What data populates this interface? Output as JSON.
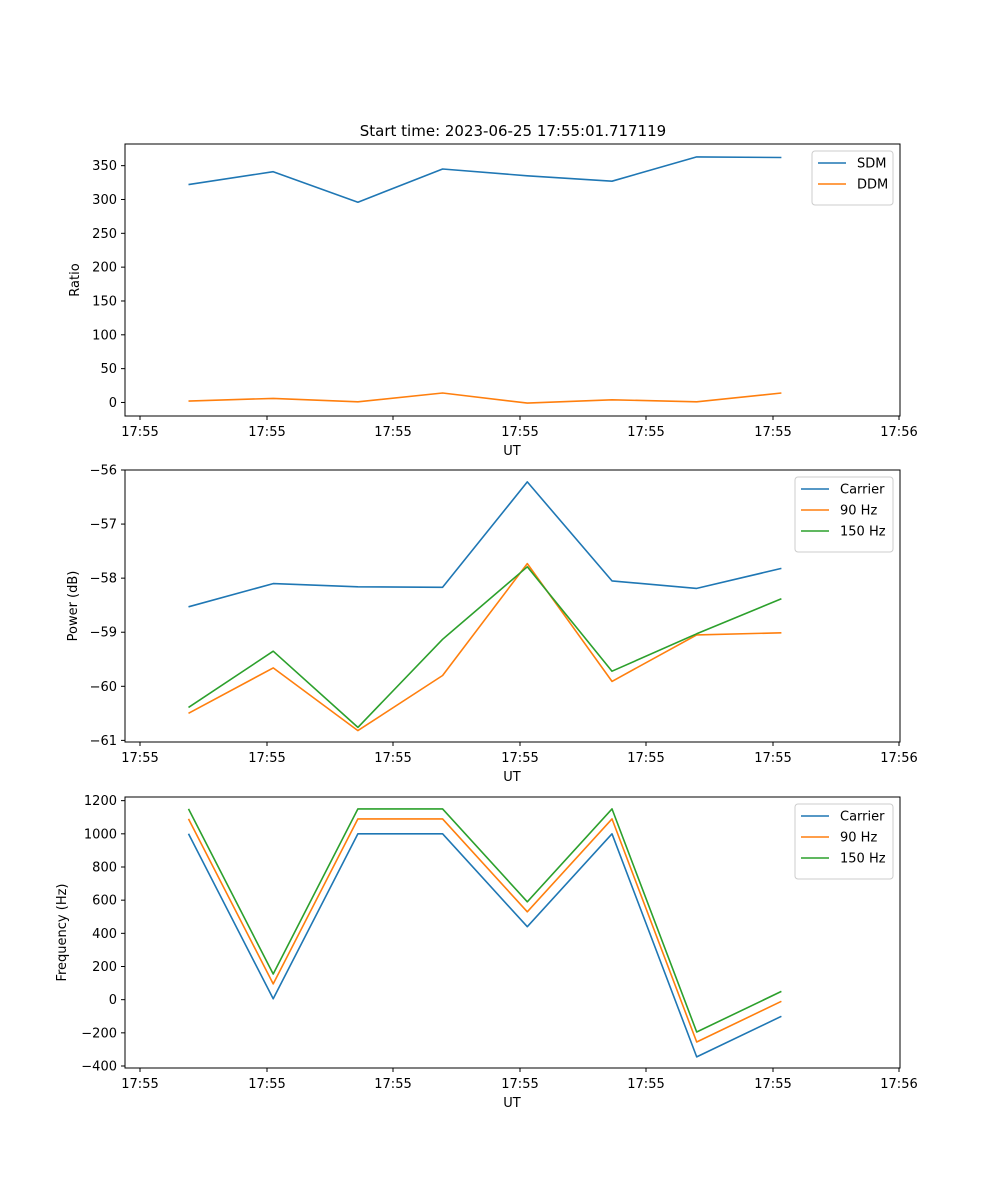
{
  "title": "Start time: 2023-06-25 17:55:01.717119",
  "colors": {
    "blue": "#1f77b4",
    "orange": "#ff7f0e",
    "green": "#2ca02c"
  },
  "chart_data": [
    {
      "type": "line",
      "xlabel": "UT",
      "ylabel": "Ratio",
      "ylim": [
        -20,
        382
      ],
      "yticks": [
        0,
        50,
        100,
        150,
        200,
        250,
        300,
        350
      ],
      "ytick_labels": [
        "0",
        "50",
        "100",
        "150",
        "200",
        "250",
        "300",
        "350"
      ],
      "xlim": [
        -0.45,
        8.7
      ],
      "xtick_labels": [
        "17:55",
        "17:55",
        "17:55",
        "17:55",
        "17:55",
        "17:55",
        "17:56"
      ],
      "x": [
        0.3,
        1.3,
        2.3,
        3.3,
        4.3,
        5.3,
        6.3,
        7.3
      ],
      "legend_position": "top-right",
      "series": [
        {
          "name": "SDM",
          "values": [
            322,
            341,
            296,
            345,
            335,
            327,
            363,
            362
          ]
        },
        {
          "name": "DDM",
          "values": [
            2,
            6,
            1,
            14,
            -1,
            4,
            1,
            14
          ]
        }
      ]
    },
    {
      "type": "line",
      "xlabel": "UT",
      "ylabel": "Power (dB)",
      "ylim": [
        -61.03,
        -56
      ],
      "yticks": [
        -61,
        -60,
        -59,
        -58,
        -57,
        -56
      ],
      "ytick_labels": [
        "−61",
        "−60",
        "−59",
        "−58",
        "−57",
        "−56"
      ],
      "xlim": [
        -0.45,
        8.7
      ],
      "xtick_labels": [
        "17:55",
        "17:55",
        "17:55",
        "17:55",
        "17:55",
        "17:55",
        "17:56"
      ],
      "x": [
        0.3,
        1.3,
        2.3,
        3.3,
        4.3,
        5.3,
        6.3,
        7.3
      ],
      "legend_position": "top-right",
      "series": [
        {
          "name": "Carrier",
          "values": [
            -58.53,
            -58.1,
            -58.16,
            -58.17,
            -56.22,
            -58.05,
            -58.19,
            -57.82
          ]
        },
        {
          "name": "90 Hz",
          "values": [
            -60.5,
            -59.66,
            -60.82,
            -59.8,
            -57.73,
            -59.91,
            -59.05,
            -59.01
          ]
        },
        {
          "name": "150 Hz",
          "values": [
            -60.39,
            -59.35,
            -60.76,
            -59.13,
            -57.79,
            -59.72,
            -59.03,
            -58.38
          ]
        }
      ]
    },
    {
      "type": "line",
      "xlabel": "UT",
      "ylabel": "Frequency (Hz)",
      "ylim": [
        -412,
        1222
      ],
      "yticks": [
        -400,
        -200,
        0,
        200,
        400,
        600,
        800,
        1000,
        1200
      ],
      "ytick_labels": [
        "−400",
        "−200",
        "0",
        "200",
        "400",
        "600",
        "800",
        "1000",
        "1200"
      ],
      "xlim": [
        -0.45,
        8.7
      ],
      "xtick_labels": [
        "17:55",
        "17:55",
        "17:55",
        "17:55",
        "17:55",
        "17:55",
        "17:56"
      ],
      "x": [
        0.3,
        1.3,
        2.3,
        3.3,
        4.3,
        5.3,
        6.3,
        7.3
      ],
      "legend_position": "top-right",
      "series": [
        {
          "name": "Carrier",
          "values": [
            1000,
            5,
            1000,
            1000,
            440,
            1000,
            -345,
            -100
          ]
        },
        {
          "name": "90 Hz",
          "values": [
            1090,
            95,
            1090,
            1090,
            530,
            1090,
            -255,
            -10
          ]
        },
        {
          "name": "150 Hz",
          "values": [
            1150,
            155,
            1150,
            1150,
            590,
            1150,
            -195,
            50
          ]
        }
      ]
    }
  ]
}
